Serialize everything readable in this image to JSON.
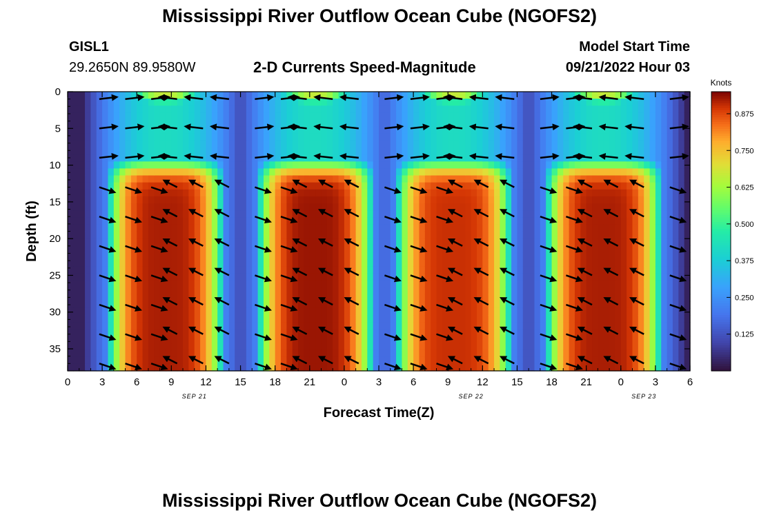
{
  "title": "Mississippi River Outflow Ocean Cube (NGOFS2)",
  "station": {
    "id": "GISL1",
    "coords": "29.2650N  89.9580W"
  },
  "subtitle": "2-D Currents Speed-Magnitude",
  "model_start": {
    "label": "Model Start Time",
    "value": "09/21/2022 Hour 03"
  },
  "footer_title": "Mississippi River Outflow Ocean Cube (NGOFS2)",
  "chart_data": {
    "type": "heatmap",
    "xlabel": "Forecast Time(Z)",
    "ylabel": "Depth (ft)",
    "x_tick_labels": [
      "0",
      "3",
      "6",
      "9",
      "12",
      "15",
      "18",
      "21",
      "0",
      "3",
      "6",
      "9",
      "12",
      "15",
      "18",
      "21",
      "0",
      "3",
      "6"
    ],
    "x_range_hours": [
      0,
      54
    ],
    "y_ticks": [
      0,
      5,
      10,
      15,
      20,
      25,
      30,
      35
    ],
    "ylim": [
      0,
      38
    ],
    "date_labels": [
      {
        "text": "SEP 21",
        "hour": 11
      },
      {
        "text": "SEP 22",
        "hour": 35
      },
      {
        "text": "SEP 23",
        "hour": 50
      }
    ],
    "colorbar": {
      "label": "Knots",
      "ticks": [
        "0.875",
        "0.750",
        "0.625",
        "0.500",
        "0.375",
        "0.250",
        "0.125"
      ],
      "tick_values": [
        0.875,
        0.75,
        0.625,
        0.5,
        0.375,
        0.25,
        0.125
      ],
      "range": [
        0.0,
        0.95
      ]
    },
    "speed_peaks": [
      {
        "center_hour": 8.5,
        "value": 0.92
      },
      {
        "center_hour": 21.5,
        "value": 0.93
      },
      {
        "center_hour": 33.5,
        "value": 0.9
      },
      {
        "center_hour": 46.5,
        "value": 0.92
      }
    ],
    "speed_minima_hours": [
      3,
      15,
      28,
      39.5,
      52
    ],
    "grid": false,
    "legend": "right"
  }
}
